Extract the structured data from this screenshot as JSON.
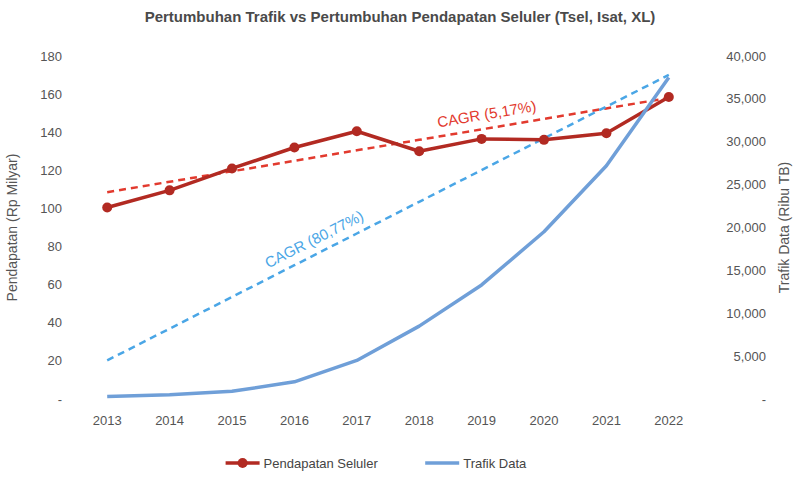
{
  "chart_data": {
    "type": "line",
    "title": "Pertumbuhan Trafik vs Pertumbuhan Pendapatan Seluler (Tsel, Isat, XL)",
    "y_label": "Pendapatan (Rp Milyar)",
    "y2_label": "Trafik Data (Ribu TB)",
    "categories": [
      "2013",
      "2014",
      "2015",
      "2016",
      "2017",
      "2018",
      "2019",
      "2020",
      "2021",
      "2022"
    ],
    "series": [
      {
        "name": "Pendapatan Seluler",
        "color": "#b22a22",
        "marker": "circle",
        "line_style": "solid",
        "values": [
          100.5,
          109.5,
          121,
          132,
          140.5,
          130,
          136.5,
          136,
          139.5,
          158.5
        ]
      },
      {
        "name": "Trafik Data",
        "color": "#6f9fd8",
        "marker": "none",
        "line_style": "solid",
        "axis": "y2",
        "values": [
          300,
          500,
          900,
          2000,
          4500,
          8500,
          13300,
          19500,
          27200,
          37500
        ]
      },
      {
        "label": "CAGR (5,17%)",
        "color": "#e23a2e",
        "marker": "none",
        "line_style": "dashed",
        "values": [
          108.5,
          114,
          119.5,
          125,
          130.5,
          136,
          141.5,
          147,
          152.5,
          158
        ]
      },
      {
        "label": "CAGR (80,77%)",
        "color": "#4aa6e6",
        "marker": "none",
        "line_style": "dashed",
        "axis": "y2",
        "values": [
          4500,
          8200,
          11900,
          15600,
          19300,
          23000,
          26700,
          30400,
          34100,
          37800
        ]
      }
    ],
    "ylim": [
      0,
      180
    ],
    "yticks": [
      {
        "value": 0,
        "label": "-"
      },
      20,
      40,
      60,
      80,
      100,
      120,
      140,
      160,
      180
    ],
    "y2lim": [
      0,
      40000
    ],
    "y2ticks": [
      {
        "value": 0,
        "label": "-"
      },
      {
        "value": 5000,
        "label": "5,000"
      },
      {
        "value": 10000,
        "label": "10,000"
      },
      {
        "value": 15000,
        "label": "15,000"
      },
      {
        "value": 20000,
        "label": "20,000"
      },
      {
        "value": 25000,
        "label": "25,000"
      },
      {
        "value": 30000,
        "label": "30,000"
      },
      {
        "value": 35000,
        "label": "35,000"
      },
      {
        "value": 40000,
        "label": "40,000"
      }
    ],
    "grid": false,
    "legend": "bottom"
  }
}
